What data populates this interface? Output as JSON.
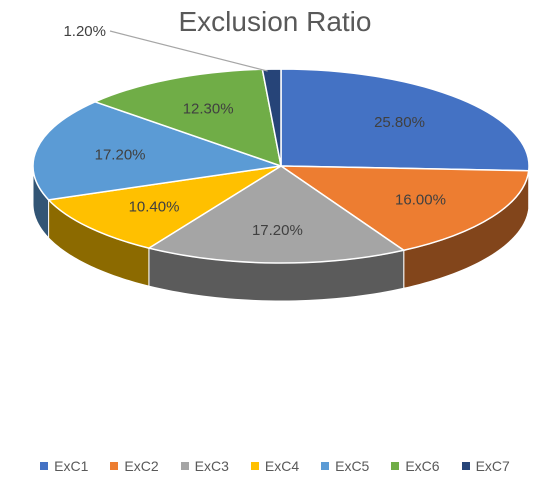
{
  "chart_data": {
    "type": "pie",
    "title": "Exclusion Ratio",
    "categories": [
      "ExC1",
      "ExC2",
      "ExC3",
      "ExC4",
      "ExC5",
      "ExC6",
      "ExC7"
    ],
    "values": [
      25.8,
      16.0,
      17.2,
      10.4,
      17.2,
      12.3,
      1.2
    ],
    "labels": [
      "25.80%",
      "16.00%",
      "17.20%",
      "10.40%",
      "17.20%",
      "12.30%",
      "1.20%"
    ],
    "colors": [
      "#4472C4",
      "#ED7D31",
      "#A5A5A5",
      "#FFC000",
      "#5B9BD5",
      "#70AD47",
      "#264478"
    ],
    "style": "3d-pie",
    "legend_position": "bottom"
  }
}
